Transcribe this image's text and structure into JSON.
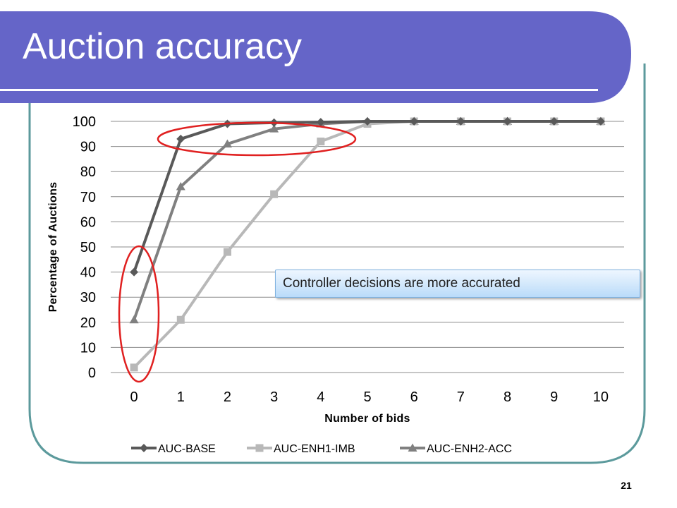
{
  "slide": {
    "title": "Auction accuracy",
    "page_number": "21",
    "theme_colors": {
      "banner": "#6565c8",
      "frame_border": "#5c9a9c",
      "underline": "#ffffff"
    }
  },
  "annotation": {
    "text": "Controller decisions are more accurated",
    "border": "#7fb2e0"
  },
  "highlights": {
    "ellipse_color": "#e02020"
  },
  "chart_data": {
    "type": "line",
    "title": "",
    "xlabel": "Number of bids",
    "ylabel": "Percentage of Auctions",
    "x": [
      0,
      1,
      2,
      3,
      4,
      5,
      6,
      7,
      8,
      9,
      10
    ],
    "ylim": [
      0,
      100
    ],
    "yticks": [
      0,
      10,
      20,
      30,
      40,
      50,
      60,
      70,
      80,
      90,
      100
    ],
    "grid": "horizontal",
    "legend_position": "bottom",
    "series": [
      {
        "name": "AUC-BASE",
        "marker": "diamond",
        "color": "#595959",
        "values": [
          40,
          93,
          99,
          99.5,
          99.7,
          100,
          100,
          100,
          100,
          100,
          100
        ]
      },
      {
        "name": "AUC-ENH1-IMB",
        "marker": "square",
        "color": "#b8b8b8",
        "values": [
          2,
          21,
          48,
          71,
          92,
          99,
          100,
          100,
          100,
          100,
          100
        ]
      },
      {
        "name": "AUC-ENH2-ACC",
        "marker": "triangle",
        "color": "#808080",
        "values": [
          21,
          74,
          91,
          97,
          99,
          100,
          100,
          100,
          100,
          100,
          100
        ]
      }
    ]
  }
}
